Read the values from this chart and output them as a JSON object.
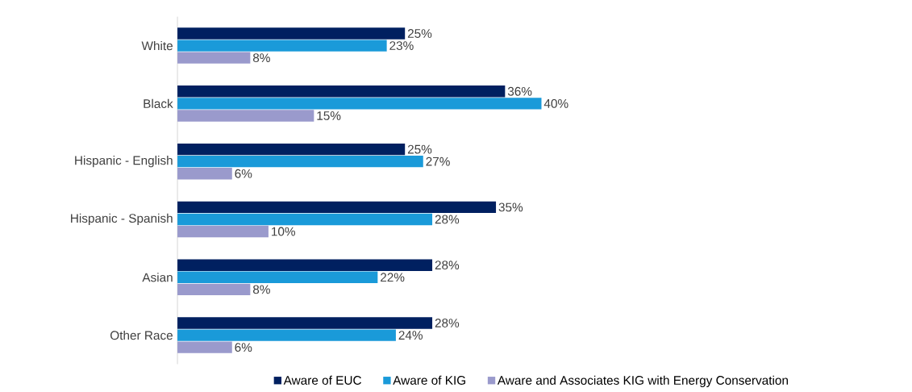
{
  "chart_data": {
    "type": "bar",
    "orientation": "horizontal",
    "legend": "bottom",
    "categories": [
      "White",
      "Black",
      "Hispanic - English",
      "Hispanic - Spanish",
      "Asian",
      "Other Race"
    ],
    "series": [
      {
        "name": "Aware of EUC",
        "color": "#002060",
        "values": [
          25,
          36,
          25,
          35,
          28,
          28
        ],
        "value_labels": [
          "25%",
          "36%",
          "25%",
          "35%",
          "28%",
          "28%"
        ]
      },
      {
        "name": "Aware of KIG",
        "color": "#1a9ad9",
        "values": [
          23,
          40,
          27,
          28,
          22,
          24
        ],
        "value_labels": [
          "23%",
          "40%",
          "27%",
          "28%",
          "22%",
          "24%"
        ]
      },
      {
        "name": "Aware and Associates KIG with Energy Conservation",
        "color": "#9a9acc",
        "values": [
          8,
          15,
          6,
          10,
          8,
          6
        ],
        "value_labels": [
          "8%",
          "15%",
          "6%",
          "10%",
          "8%",
          "6%"
        ]
      }
    ]
  }
}
